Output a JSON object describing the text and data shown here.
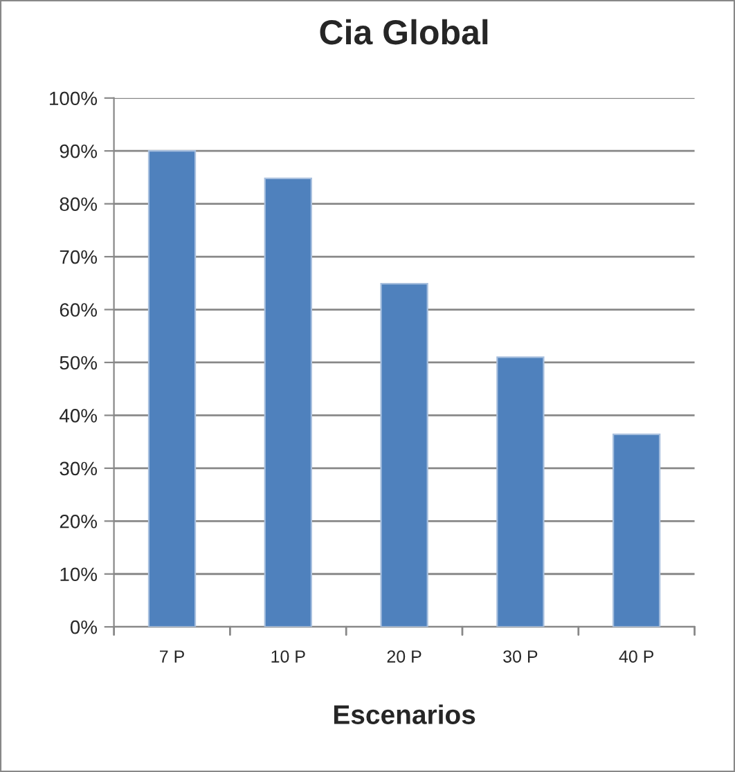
{
  "chart_data": {
    "type": "bar",
    "title": "Cia Global",
    "xlabel": "Escenarios",
    "categories": [
      "7 P",
      "10 P",
      "20 P",
      "30 P",
      "40 P"
    ],
    "values": [
      90,
      84.8,
      64.9,
      51,
      36.4
    ],
    "color": "#4f81bd",
    "ylim": [
      0,
      100
    ],
    "yticks": [
      {
        "value": 0,
        "label": "0%"
      },
      {
        "value": 10,
        "label": "10%"
      },
      {
        "value": 20,
        "label": "20%"
      },
      {
        "value": 30,
        "label": "30%"
      },
      {
        "value": 40,
        "label": "40%"
      },
      {
        "value": 50,
        "label": "50%"
      },
      {
        "value": 60,
        "label": "60%"
      },
      {
        "value": 70,
        "label": "70%"
      },
      {
        "value": 80,
        "label": "80%"
      },
      {
        "value": 90,
        "label": "90%"
      },
      {
        "value": 100,
        "label": "100%"
      }
    ],
    "grid": "y",
    "legend": false
  }
}
